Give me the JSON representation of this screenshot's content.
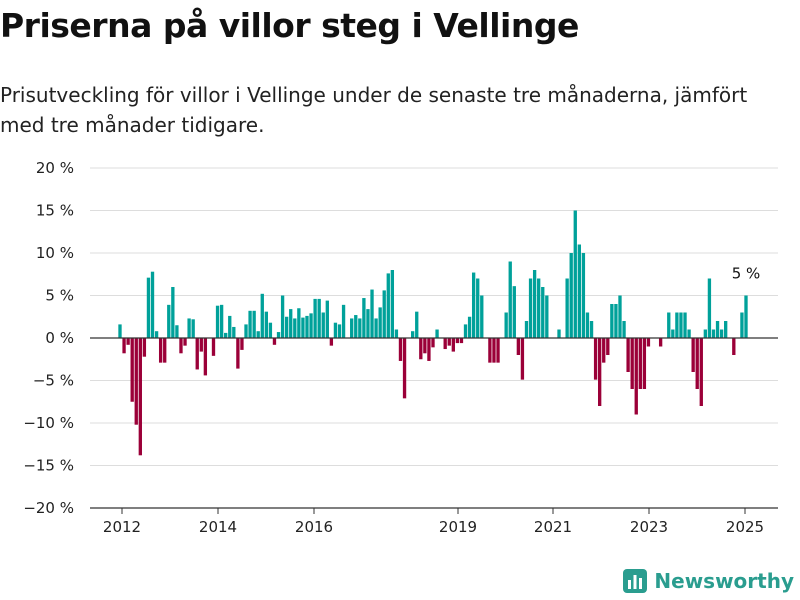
{
  "header": {
    "title": "Priserna på villor steg i Vellinge",
    "subtitle": "Prisutveckling för villor i Vellinge under de senaste tre månaderna, jämfört med tre månader tidigare."
  },
  "brand": {
    "name": "Newsworthy",
    "color": "#2a9d8f"
  },
  "colors": {
    "positive": "#00a19a",
    "negative": "#9b0038",
    "grid": "#dddddd",
    "axis": "#333333"
  },
  "chart_data": {
    "type": "bar",
    "ylim": [
      -20,
      20
    ],
    "y_ticks": [
      20,
      15,
      10,
      5,
      0,
      -5,
      -10,
      -15,
      -20
    ],
    "y_tick_labels": [
      "20 %",
      "15 %",
      "10 %",
      "5 %",
      "0 %",
      "−5 %",
      "−10 %",
      "−15 %",
      "−20 %"
    ],
    "x_ticks": [
      "2012",
      "2014",
      "2016",
      "2019",
      "2021",
      "2023",
      "2025"
    ],
    "grid": true,
    "annotation": {
      "label": "5 %",
      "value": 5
    },
    "values": [
      1.6,
      -1.8,
      -0.8,
      -7.5,
      -10.2,
      -13.8,
      -2.2,
      7.1,
      7.8,
      0.8,
      -2.9,
      -2.9,
      3.9,
      6,
      1.5,
      -1.8,
      -0.9,
      2.3,
      2.2,
      -3.7,
      -1.6,
      -4.4,
      0,
      -2.1,
      3.8,
      3.9,
      0.6,
      2.6,
      1.3,
      -3.6,
      -1.4,
      1.6,
      3.2,
      3.2,
      0.8,
      5.2,
      3.1,
      1.8,
      -0.8,
      0.7,
      5,
      2.5,
      3.4,
      2.3,
      3.5,
      2.4,
      2.6,
      2.9,
      4.6,
      4.6,
      3,
      4.4,
      -0.9,
      1.8,
      1.6,
      3.9,
      0,
      2.3,
      2.7,
      2.3,
      4.7,
      3.4,
      5.7,
      2.3,
      3.6,
      5.6,
      7.6,
      8,
      1,
      -2.7,
      -7.1,
      0,
      0.8,
      3.1,
      -2.5,
      -1.8,
      -2.7,
      -1.1,
      1,
      0,
      -1.3,
      -0.9,
      -1.6,
      -0.6,
      -0.6,
      1.6,
      2.5,
      7.7,
      7,
      5,
      0,
      -2.9,
      -2.9,
      -2.9,
      0,
      3,
      9,
      6.1,
      -2,
      -4.9,
      2,
      7,
      8,
      7,
      6,
      5,
      0,
      0,
      1,
      0,
      7,
      10,
      15,
      11,
      10,
      3,
      2,
      -4.9,
      -8,
      -2.9,
      -2,
      4,
      4,
      5,
      2,
      -4,
      -6,
      -9,
      -6,
      -6,
      -1,
      0,
      0,
      -1,
      0,
      3,
      1,
      3,
      3,
      3,
      1,
      -4,
      -6,
      -8,
      1,
      7,
      1,
      2,
      1,
      2,
      0,
      -2,
      0,
      3,
      5
    ]
  }
}
